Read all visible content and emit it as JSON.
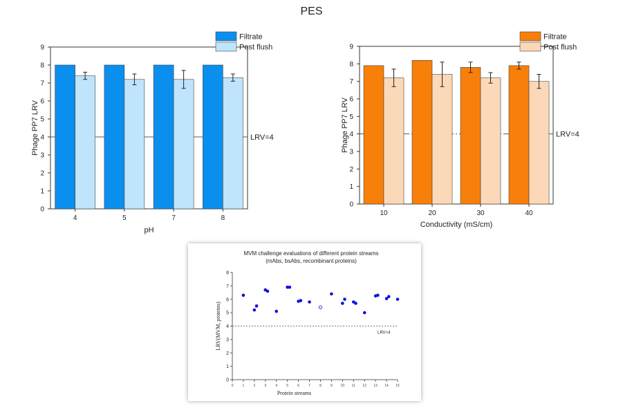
{
  "page": {
    "title": "PES"
  },
  "chart_data": [
    {
      "type": "bar",
      "xlabel": "pH",
      "ylabel": "Phage PP7 LRV",
      "ylim": [
        0,
        9
      ],
      "yticks": [
        "0",
        "1",
        "2",
        "3",
        "4",
        "5",
        "6",
        "7",
        "8",
        "9"
      ],
      "categories": [
        "4",
        "5",
        "7",
        "8"
      ],
      "series": [
        {
          "name": "Filtrate",
          "values": [
            8.0,
            8.0,
            8.0,
            8.0
          ],
          "errors": [
            0,
            0,
            0,
            0
          ],
          "color": "#0a8fef"
        },
        {
          "name": "Post flush",
          "values": [
            7.4,
            7.2,
            7.2,
            7.3
          ],
          "errors": [
            0.2,
            0.3,
            0.5,
            0.2
          ],
          "color": "#bfe4fb"
        }
      ],
      "reference_line": {
        "value": 4,
        "label": "LRV=4",
        "style": "solid"
      },
      "legend": "top-right"
    },
    {
      "type": "bar",
      "xlabel": "Conductivity (mS/cm)",
      "ylabel": "Phage PP7 LRV",
      "ylim": [
        0,
        9
      ],
      "yticks": [
        "0",
        "1",
        "2",
        "3",
        "4",
        "5",
        "6",
        "7",
        "8",
        "9"
      ],
      "categories": [
        "10",
        "20",
        "30",
        "40"
      ],
      "series": [
        {
          "name": "Filtrate",
          "values": [
            7.9,
            8.2,
            7.8,
            7.9
          ],
          "errors": [
            0,
            0,
            0.3,
            0.2
          ],
          "color": "#f77f0a"
        },
        {
          "name": "Post flush",
          "values": [
            7.2,
            7.4,
            7.2,
            7.0
          ],
          "errors": [
            0.5,
            0.7,
            0.3,
            0.4
          ],
          "color": "#fbd8b8"
        }
      ],
      "reference_line": {
        "value": 4,
        "label": "LRV=4",
        "style": "dash-dot"
      },
      "legend": "top-right"
    },
    {
      "type": "scatter",
      "title": "MVM challenge evaluations of different protein streams",
      "subtitle": "(mAbs, bsAbs, recombinant proteins)",
      "xlabel": "Protein streams",
      "ylabel": "LRV(MVM, proteins)",
      "xlim": [
        0,
        15
      ],
      "ylim": [
        0,
        8
      ],
      "xticks": [
        "0",
        "1",
        "2",
        "3",
        "4",
        "5",
        "6",
        "7",
        "8",
        "9",
        "10",
        "11",
        "12",
        "13",
        "14",
        "15"
      ],
      "yticks": [
        "0",
        "1",
        "2",
        "3",
        "4",
        "5",
        "6",
        "7",
        "8"
      ],
      "series": [
        {
          "name": "filled",
          "color": "#1010e0",
          "x": [
            1,
            2,
            2.2,
            3,
            3.2,
            4,
            5,
            5.2,
            6,
            6.2,
            7,
            9,
            10,
            10.2,
            11,
            11.2,
            12,
            13,
            13.2,
            14,
            14.2,
            15
          ],
          "y": [
            6.3,
            5.2,
            5.5,
            6.7,
            6.6,
            5.1,
            6.9,
            6.9,
            5.85,
            5.9,
            5.8,
            6.4,
            5.7,
            6.0,
            5.8,
            5.7,
            5.0,
            6.25,
            6.3,
            6.05,
            6.2,
            6.0
          ]
        },
        {
          "name": "open",
          "color": "#1010e0",
          "x": [
            8
          ],
          "y": [
            5.4
          ],
          "open": true
        }
      ],
      "reference_line": {
        "value": 4,
        "label": "LRV=4",
        "style": "dotted"
      }
    }
  ]
}
